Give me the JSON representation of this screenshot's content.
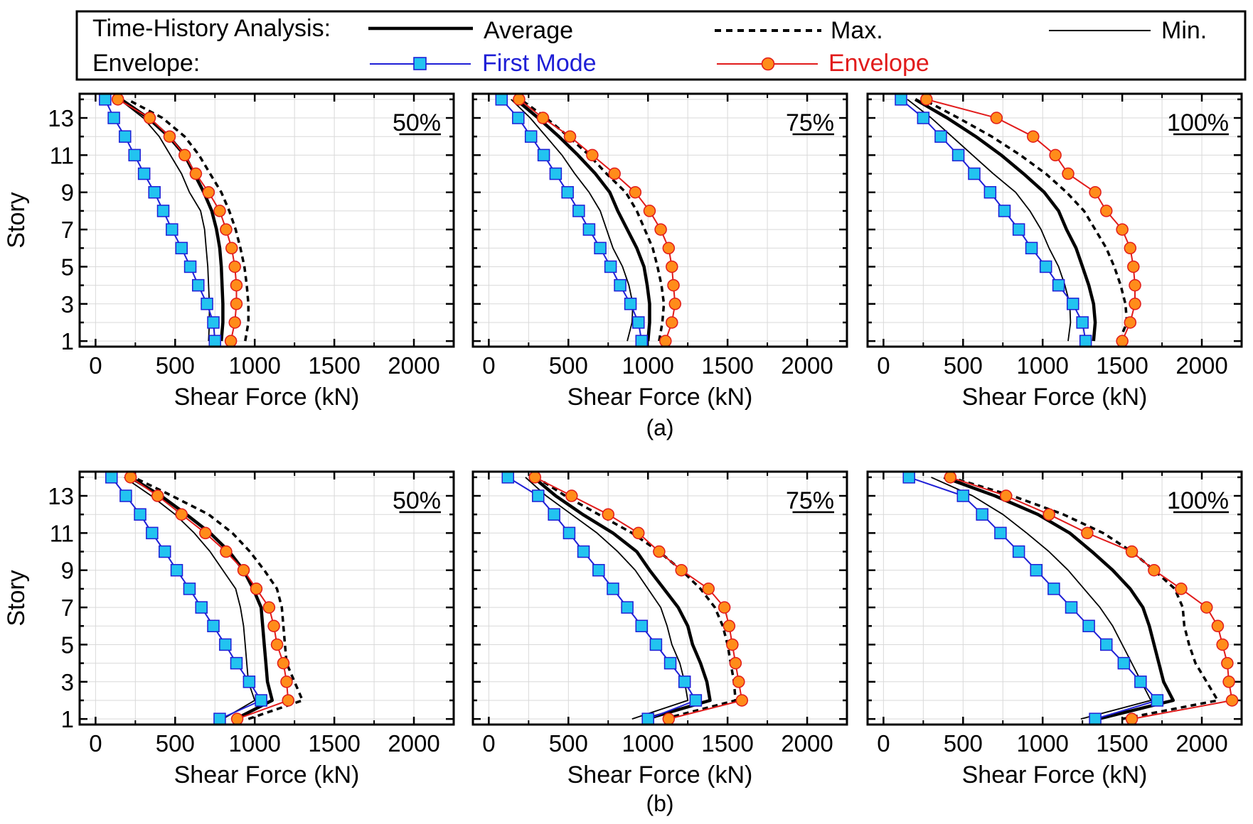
{
  "legend": {
    "row1_label": "Time-History Analysis:",
    "row2_label": "Envelope:",
    "average": "Average",
    "max": "Max.",
    "min": "Min.",
    "first_mode": "First Mode",
    "envelope": "Envelope"
  },
  "rows": [
    {
      "caption": "(a)"
    },
    {
      "caption": "(b)"
    }
  ],
  "colors": {
    "first_mode_line": "#1f1fd6",
    "first_mode_marker": "#22c3f0",
    "envelope_line": "#e11b1b",
    "envelope_marker": "#ff8c1a",
    "text_blue": "#1f1fd6",
    "text_red": "#e11b1b"
  },
  "chart_data": [
    {
      "type": "line",
      "panel": "a-50",
      "label": "50%",
      "xlabel": "Shear Force (kN)",
      "ylabel": "Story",
      "xlim": [
        -100,
        2250
      ],
      "ylim": [
        0.7,
        14.3
      ],
      "xticks": [
        0,
        500,
        1000,
        1500,
        2000
      ],
      "yticks": [
        1,
        3,
        5,
        7,
        9,
        11,
        13
      ],
      "stories": [
        1,
        2,
        3,
        4,
        5,
        6,
        7,
        8,
        9,
        10,
        11,
        12,
        13,
        14
      ],
      "series": [
        {
          "name": "Average",
          "values": [
            790,
            800,
            800,
            795,
            790,
            780,
            760,
            730,
            680,
            620,
            560,
            460,
            330,
            160
          ]
        },
        {
          "name": "Max.",
          "values": [
            940,
            960,
            960,
            950,
            935,
            910,
            880,
            840,
            790,
            720,
            650,
            560,
            420,
            200
          ]
        },
        {
          "name": "Min.",
          "values": [
            710,
            715,
            715,
            710,
            705,
            695,
            685,
            660,
            590,
            540,
            470,
            400,
            300,
            150
          ]
        },
        {
          "name": "First Mode",
          "values": [
            750,
            740,
            700,
            645,
            595,
            540,
            480,
            425,
            370,
            305,
            245,
            185,
            115,
            60
          ]
        },
        {
          "name": "Envelope",
          "values": [
            850,
            875,
            885,
            885,
            875,
            855,
            820,
            780,
            710,
            630,
            560,
            465,
            340,
            140
          ]
        }
      ]
    },
    {
      "type": "line",
      "panel": "a-75",
      "label": "75%",
      "xlabel": "Shear Force (kN)",
      "ylabel": "Story",
      "xlim": [
        -100,
        2250
      ],
      "ylim": [
        0.7,
        14.3
      ],
      "xticks": [
        0,
        500,
        1000,
        1500,
        2000
      ],
      "yticks": [
        1,
        3,
        5,
        7,
        9,
        11,
        13
      ],
      "stories": [
        1,
        2,
        3,
        4,
        5,
        6,
        7,
        8,
        9,
        10,
        11,
        12,
        13,
        14
      ],
      "series": [
        {
          "name": "Average",
          "values": [
            1000,
            1010,
            1010,
            995,
            975,
            930,
            870,
            810,
            760,
            670,
            560,
            440,
            310,
            170
          ]
        },
        {
          "name": "Max.",
          "values": [
            1070,
            1090,
            1100,
            1085,
            1060,
            1030,
            980,
            930,
            860,
            740,
            630,
            500,
            360,
            200
          ]
        },
        {
          "name": "Min.",
          "values": [
            870,
            900,
            905,
            880,
            840,
            780,
            740,
            700,
            630,
            540,
            460,
            360,
            260,
            140
          ]
        },
        {
          "name": "First Mode",
          "values": [
            960,
            940,
            890,
            825,
            765,
            700,
            630,
            565,
            495,
            420,
            345,
            265,
            185,
            80
          ]
        },
        {
          "name": "Envelope",
          "values": [
            1110,
            1150,
            1170,
            1160,
            1150,
            1130,
            1080,
            1010,
            920,
            790,
            650,
            510,
            340,
            190
          ]
        }
      ]
    },
    {
      "type": "line",
      "panel": "a-100",
      "label": "100%",
      "xlabel": "Shear Force (kN)",
      "ylabel": "Story",
      "xlim": [
        -100,
        2250
      ],
      "ylim": [
        0.7,
        14.3
      ],
      "xticks": [
        0,
        500,
        1000,
        1500,
        2000
      ],
      "yticks": [
        1,
        3,
        5,
        7,
        9,
        11,
        13
      ],
      "stories": [
        1,
        2,
        3,
        4,
        5,
        6,
        7,
        8,
        9,
        10,
        11,
        12,
        13,
        14
      ],
      "series": [
        {
          "name": "Average",
          "values": [
            1320,
            1330,
            1320,
            1290,
            1250,
            1210,
            1150,
            1100,
            1010,
            880,
            740,
            580,
            400,
            200
          ]
        },
        {
          "name": "Max.",
          "values": [
            1480,
            1530,
            1520,
            1490,
            1450,
            1400,
            1330,
            1260,
            1150,
            1020,
            860,
            680,
            470,
            250
          ]
        },
        {
          "name": "Min.",
          "values": [
            1160,
            1175,
            1170,
            1140,
            1100,
            1040,
            990,
            920,
            830,
            690,
            560,
            430,
            300,
            150
          ]
        },
        {
          "name": "First Mode",
          "values": [
            1270,
            1250,
            1190,
            1100,
            1020,
            930,
            850,
            760,
            670,
            570,
            470,
            360,
            250,
            110
          ]
        },
        {
          "name": "Envelope",
          "values": [
            1500,
            1550,
            1580,
            1580,
            1570,
            1550,
            1500,
            1400,
            1330,
            1160,
            1080,
            940,
            710,
            270
          ]
        }
      ]
    },
    {
      "type": "line",
      "panel": "b-50",
      "label": "50%",
      "xlabel": "Shear Force (kN)",
      "ylabel": "Story",
      "xlim": [
        -100,
        2250
      ],
      "ylim": [
        0.7,
        14.3
      ],
      "xticks": [
        0,
        500,
        1000,
        1500,
        2000
      ],
      "yticks": [
        1,
        3,
        5,
        7,
        9,
        11,
        13
      ],
      "stories": [
        1,
        2,
        3,
        4,
        5,
        6,
        7,
        8,
        9,
        10,
        11,
        12,
        13,
        14
      ],
      "series": [
        {
          "name": "Average",
          "values": [
            880,
            1110,
            1080,
            1070,
            1060,
            1050,
            1040,
            990,
            930,
            840,
            720,
            570,
            410,
            220
          ]
        },
        {
          "name": "Max.",
          "values": [
            960,
            1300,
            1250,
            1200,
            1190,
            1180,
            1170,
            1140,
            1060,
            970,
            860,
            710,
            480,
            240
          ]
        },
        {
          "name": "Min.",
          "values": [
            800,
            1000,
            960,
            950,
            940,
            930,
            910,
            880,
            800,
            720,
            620,
            500,
            350,
            180
          ]
        },
        {
          "name": "First Mode",
          "values": [
            780,
            1040,
            965,
            885,
            815,
            740,
            665,
            590,
            510,
            435,
            355,
            280,
            190,
            100
          ]
        },
        {
          "name": "Envelope",
          "values": [
            890,
            1210,
            1200,
            1180,
            1140,
            1120,
            1090,
            1010,
            930,
            820,
            690,
            540,
            390,
            220
          ]
        }
      ]
    },
    {
      "type": "line",
      "panel": "b-75",
      "label": "75%",
      "xlabel": "Shear Force (kN)",
      "ylabel": "Story",
      "xlim": [
        -100,
        2250
      ],
      "ylim": [
        0.7,
        14.3
      ],
      "xticks": [
        0,
        500,
        1000,
        1500,
        2000
      ],
      "yticks": [
        1,
        3,
        5,
        7,
        9,
        11,
        13
      ],
      "stories": [
        1,
        2,
        3,
        4,
        5,
        6,
        7,
        8,
        9,
        10,
        11,
        12,
        13,
        14
      ],
      "series": [
        {
          "name": "Average",
          "values": [
            990,
            1390,
            1370,
            1330,
            1280,
            1250,
            1190,
            1100,
            1010,
            930,
            780,
            590,
            420,
            280
          ]
        },
        {
          "name": "Max.",
          "values": [
            1100,
            1550,
            1540,
            1520,
            1500,
            1470,
            1420,
            1330,
            1210,
            1070,
            900,
            690,
            480,
            300
          ]
        },
        {
          "name": "Min.",
          "values": [
            900,
            1250,
            1230,
            1200,
            1150,
            1120,
            1080,
            1000,
            920,
            810,
            680,
            520,
            360,
            230
          ]
        },
        {
          "name": "First Mode",
          "values": [
            1000,
            1300,
            1230,
            1140,
            1050,
            960,
            870,
            780,
            690,
            595,
            505,
            410,
            310,
            120
          ]
        },
        {
          "name": "Envelope",
          "values": [
            1130,
            1590,
            1570,
            1550,
            1530,
            1510,
            1480,
            1380,
            1210,
            1070,
            940,
            750,
            520,
            290
          ]
        }
      ]
    },
    {
      "type": "line",
      "panel": "b-100",
      "label": "100%",
      "xlabel": "Shear Force (kN)",
      "ylabel": "Story",
      "xlim": [
        -100,
        2250
      ],
      "ylim": [
        0.7,
        14.3
      ],
      "xticks": [
        0,
        500,
        1000,
        1500,
        2000
      ],
      "yticks": [
        1,
        3,
        5,
        7,
        9,
        11,
        13
      ],
      "stories": [
        1,
        2,
        3,
        4,
        5,
        6,
        7,
        8,
        9,
        10,
        11,
        12,
        13,
        14
      ],
      "series": [
        {
          "name": "Average",
          "values": [
            1350,
            1820,
            1760,
            1730,
            1700,
            1670,
            1630,
            1550,
            1440,
            1310,
            1170,
            970,
            700,
            380
          ]
        },
        {
          "name": "Max.",
          "values": [
            1500,
            2100,
            2030,
            1960,
            1920,
            1890,
            1880,
            1830,
            1700,
            1560,
            1380,
            1130,
            810,
            420
          ]
        },
        {
          "name": "Min.",
          "values": [
            1240,
            1680,
            1620,
            1560,
            1500,
            1440,
            1360,
            1260,
            1160,
            1040,
            900,
            750,
            560,
            300
          ]
        },
        {
          "name": "First Mode",
          "values": [
            1330,
            1720,
            1615,
            1510,
            1400,
            1290,
            1180,
            1070,
            960,
            850,
            735,
            620,
            500,
            160
          ]
        },
        {
          "name": "Envelope",
          "values": [
            1560,
            2190,
            2170,
            2160,
            2130,
            2100,
            2030,
            1870,
            1700,
            1560,
            1280,
            1040,
            770,
            420
          ]
        }
      ]
    }
  ]
}
